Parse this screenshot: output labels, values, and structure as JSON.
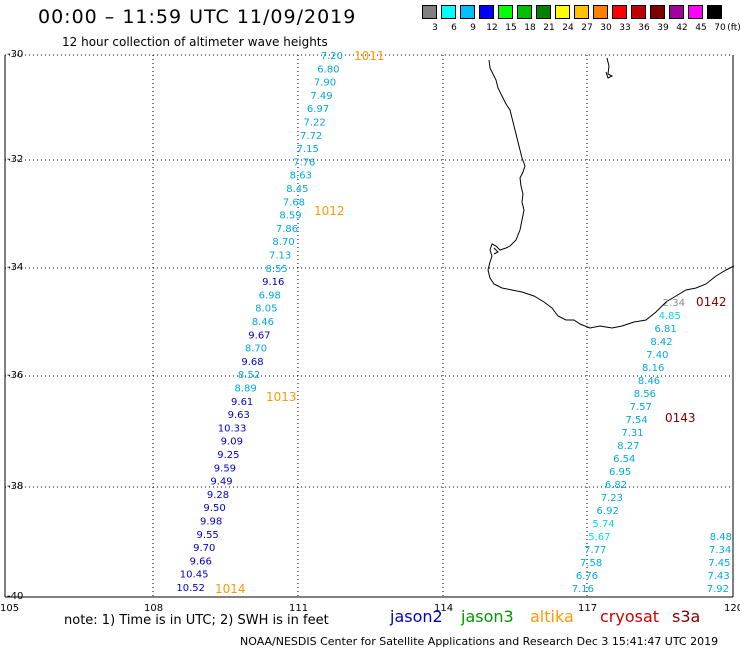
{
  "header": {
    "title": "00:00 – 11:59 UTC 11/09/2019",
    "subtitle": "12 hour collection of altimeter wave heights"
  },
  "legend": {
    "unit": "(ft)",
    "items": [
      {
        "label": "3",
        "color": "#808080"
      },
      {
        "label": "6",
        "color": "#00ffff"
      },
      {
        "label": "9",
        "color": "#00bfff"
      },
      {
        "label": "12",
        "color": "#0000ff"
      },
      {
        "label": "15",
        "color": "#00ff00"
      },
      {
        "label": "18",
        "color": "#00c000"
      },
      {
        "label": "21",
        "color": "#008000"
      },
      {
        "label": "24",
        "color": "#ffff00"
      },
      {
        "label": "27",
        "color": "#ffc000"
      },
      {
        "label": "30",
        "color": "#ff8000"
      },
      {
        "label": "33",
        "color": "#ff0000"
      },
      {
        "label": "36",
        "color": "#c00000"
      },
      {
        "label": "39",
        "color": "#800000"
      },
      {
        "label": "42",
        "color": "#a000a0"
      },
      {
        "label": "45",
        "color": "#ff00ff"
      },
      {
        "label": "70",
        "color": "#000000"
      }
    ]
  },
  "axes": {
    "lon_labels": [
      "105",
      "108",
      "111",
      "114",
      "117",
      "120"
    ],
    "lat_labels": [
      "-30",
      "-32",
      "-34",
      "-36",
      "-38",
      "-40"
    ]
  },
  "colors": {
    "jason2": "#0000cc",
    "jason3": "#009900",
    "altika": "#ff9900",
    "cryosat": "#cc0000",
    "s3a": "#800000",
    "light_swh": "#00aadd",
    "cyan_swh": "#00dddd",
    "gray_swh": "#888888"
  },
  "tracks": [
    {
      "name": "track-1",
      "points": [
        {
          "v": "7.20",
          "c": "light"
        },
        {
          "v": "6.80",
          "c": "light"
        },
        {
          "v": "7.90",
          "c": "light"
        },
        {
          "v": "7.49",
          "c": "light"
        },
        {
          "v": "6.97",
          "c": "light"
        },
        {
          "v": "7.22",
          "c": "light"
        },
        {
          "v": "7.72",
          "c": "light"
        },
        {
          "v": "7.15",
          "c": "light"
        },
        {
          "v": "7.76",
          "c": "light"
        },
        {
          "v": "8.63",
          "c": "light"
        },
        {
          "v": "8.45",
          "c": "light"
        },
        {
          "v": "7.68",
          "c": "light"
        },
        {
          "v": "8.59",
          "c": "light"
        },
        {
          "v": "7.86",
          "c": "light"
        },
        {
          "v": "8.70",
          "c": "light"
        },
        {
          "v": "7.13",
          "c": "light"
        },
        {
          "v": "8.55",
          "c": "light"
        },
        {
          "v": "9.16",
          "c": "dark"
        },
        {
          "v": "6.98",
          "c": "light"
        },
        {
          "v": "8.05",
          "c": "light"
        },
        {
          "v": "8.46",
          "c": "light"
        },
        {
          "v": "9.67",
          "c": "dark"
        },
        {
          "v": "8.70",
          "c": "light"
        },
        {
          "v": "9.68",
          "c": "dark"
        },
        {
          "v": "8.52",
          "c": "light"
        },
        {
          "v": "8.89",
          "c": "light"
        },
        {
          "v": "9.61",
          "c": "dark"
        },
        {
          "v": "9.63",
          "c": "dark"
        },
        {
          "v": "10.33",
          "c": "dark"
        },
        {
          "v": "9.09",
          "c": "dark"
        },
        {
          "v": "9.25",
          "c": "dark"
        },
        {
          "v": "9.59",
          "c": "dark"
        },
        {
          "v": "9.49",
          "c": "dark"
        },
        {
          "v": "9.28",
          "c": "dark"
        },
        {
          "v": "9.50",
          "c": "dark"
        },
        {
          "v": "9.98",
          "c": "dark"
        },
        {
          "v": "9.55",
          "c": "dark"
        },
        {
          "v": "9.70",
          "c": "dark"
        },
        {
          "v": "9.66",
          "c": "dark"
        },
        {
          "v": "10.45",
          "c": "dark"
        },
        {
          "v": "10.52",
          "c": "dark"
        }
      ]
    },
    {
      "name": "track-2",
      "points": [
        {
          "v": "2.34",
          "c": "gray"
        },
        {
          "v": "4.85",
          "c": "cyan"
        },
        {
          "v": "6.81",
          "c": "light"
        },
        {
          "v": "8.42",
          "c": "light"
        },
        {
          "v": "7.40",
          "c": "light"
        },
        {
          "v": "8.16",
          "c": "light"
        },
        {
          "v": "8.46",
          "c": "light"
        },
        {
          "v": "8.56",
          "c": "light"
        },
        {
          "v": "7.57",
          "c": "light"
        },
        {
          "v": "7.54",
          "c": "light"
        },
        {
          "v": "7.31",
          "c": "light"
        },
        {
          "v": "8.27",
          "c": "light"
        },
        {
          "v": "6.54",
          "c": "light"
        },
        {
          "v": "6.95",
          "c": "light"
        },
        {
          "v": "6.82",
          "c": "light"
        },
        {
          "v": "7.23",
          "c": "light"
        },
        {
          "v": "6.92",
          "c": "light"
        },
        {
          "v": "5.74",
          "c": "cyan"
        },
        {
          "v": "5.67",
          "c": "cyan"
        },
        {
          "v": "7.77",
          "c": "light"
        },
        {
          "v": "7.58",
          "c": "light"
        },
        {
          "v": "6.76",
          "c": "light"
        },
        {
          "v": "7.16",
          "c": "light"
        }
      ]
    },
    {
      "name": "track-3",
      "points": [
        {
          "v": "8.48",
          "c": "light"
        },
        {
          "v": "7.34",
          "c": "light"
        },
        {
          "v": "7.45",
          "c": "light"
        },
        {
          "v": "7.43",
          "c": "light"
        },
        {
          "v": "7.92",
          "c": "light"
        }
      ]
    }
  ],
  "time_labels": [
    {
      "text": "1011",
      "sat": "altika"
    },
    {
      "text": "1012",
      "sat": "altika"
    },
    {
      "text": "1013",
      "sat": "altika"
    },
    {
      "text": "1014",
      "sat": "altika"
    },
    {
      "text": "0142",
      "sat": "s3a"
    },
    {
      "text": "0143",
      "sat": "s3a"
    }
  ],
  "footer": {
    "note": "note: 1) Time is in UTC; 2) SWH is in feet",
    "satellites": [
      {
        "key": "jason2",
        "label": "jason2"
      },
      {
        "key": "jason3",
        "label": "jason3"
      },
      {
        "key": "altika",
        "label": "altika"
      },
      {
        "key": "cryosat",
        "label": "cryosat"
      },
      {
        "key": "s3a",
        "label": "s3a"
      }
    ],
    "credit": "NOAA/NESDIS Center for Satellite Applications and Research    Dec  3 15:41:47 UTC 2019"
  }
}
